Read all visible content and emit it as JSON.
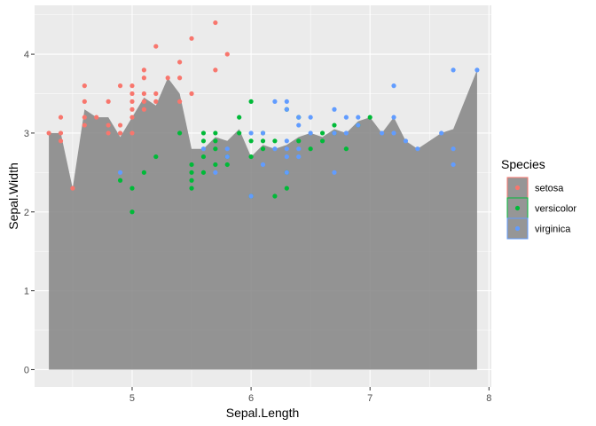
{
  "chart_data": {
    "type": "area",
    "xlabel": "Sepal.Length",
    "ylabel": "Sepal.Width",
    "xlim": [
      4.18,
      8.02
    ],
    "ylim": [
      -0.22,
      4.62
    ],
    "x_ticks": [
      5,
      6,
      7,
      8
    ],
    "y_ticks": [
      0,
      1,
      2,
      3,
      4
    ],
    "x_tick_labels": [
      "5",
      "6",
      "7",
      "8"
    ],
    "y_tick_labels": [
      "0",
      "1",
      "2",
      "3",
      "4"
    ],
    "grid": true,
    "legend": {
      "title": "Species",
      "position": "right",
      "entries": [
        {
          "label": "setosa",
          "color": "#F8766D"
        },
        {
          "label": "versicolor",
          "color": "#00BA38"
        },
        {
          "label": "virginica",
          "color": "#619CFF"
        }
      ]
    },
    "area": {
      "color": "#7f7f7f",
      "x": [
        4.3,
        4.4,
        4.5,
        4.6,
        4.7,
        4.8,
        4.9,
        5.0,
        5.1,
        5.2,
        5.3,
        5.4,
        5.5,
        5.6,
        5.7,
        5.8,
        5.9,
        6.0,
        6.1,
        6.2,
        6.3,
        6.4,
        6.5,
        6.6,
        6.7,
        6.8,
        6.9,
        7.0,
        7.1,
        7.2,
        7.3,
        7.4,
        7.6,
        7.7,
        7.9
      ],
      "y": [
        3.0,
        3.0,
        2.3,
        3.3,
        3.2,
        3.2,
        2.95,
        3.2,
        3.45,
        3.35,
        3.7,
        3.5,
        2.8,
        2.8,
        2.95,
        2.9,
        3.05,
        2.7,
        2.85,
        2.8,
        2.85,
        2.95,
        3.0,
        2.95,
        3.05,
        3.0,
        3.15,
        3.2,
        3.0,
        3.2,
        2.9,
        2.8,
        3.0,
        3.05,
        3.8
      ]
    },
    "series": [
      {
        "name": "setosa",
        "color": "#F8766D",
        "points": [
          [
            4.3,
            3.0
          ],
          [
            4.4,
            3.0
          ],
          [
            4.4,
            2.9
          ],
          [
            4.4,
            3.2
          ],
          [
            4.5,
            2.3
          ],
          [
            4.6,
            3.1
          ],
          [
            4.6,
            3.2
          ],
          [
            4.6,
            3.4
          ],
          [
            4.6,
            3.6
          ],
          [
            4.7,
            3.2
          ],
          [
            4.8,
            3.0
          ],
          [
            4.8,
            3.1
          ],
          [
            4.8,
            3.4
          ],
          [
            4.9,
            3.0
          ],
          [
            4.9,
            3.1
          ],
          [
            4.9,
            3.6
          ],
          [
            5.0,
            3.0
          ],
          [
            5.0,
            3.2
          ],
          [
            5.0,
            3.3
          ],
          [
            5.0,
            3.4
          ],
          [
            5.0,
            3.5
          ],
          [
            5.0,
            3.6
          ],
          [
            5.1,
            3.3
          ],
          [
            5.1,
            3.4
          ],
          [
            5.1,
            3.5
          ],
          [
            5.1,
            3.7
          ],
          [
            5.1,
            3.8
          ],
          [
            5.2,
            3.4
          ],
          [
            5.2,
            3.5
          ],
          [
            5.2,
            4.1
          ],
          [
            5.3,
            3.7
          ],
          [
            5.4,
            3.4
          ],
          [
            5.4,
            3.7
          ],
          [
            5.4,
            3.9
          ],
          [
            5.5,
            3.5
          ],
          [
            5.5,
            4.2
          ],
          [
            5.7,
            3.8
          ],
          [
            5.7,
            4.4
          ],
          [
            5.8,
            4.0
          ]
        ]
      },
      {
        "name": "versicolor",
        "color": "#00BA38",
        "points": [
          [
            4.9,
            2.4
          ],
          [
            5.0,
            2.0
          ],
          [
            5.0,
            2.3
          ],
          [
            5.1,
            2.5
          ],
          [
            5.2,
            2.7
          ],
          [
            5.4,
            3.0
          ],
          [
            5.5,
            2.3
          ],
          [
            5.5,
            2.4
          ],
          [
            5.5,
            2.5
          ],
          [
            5.5,
            2.6
          ],
          [
            5.6,
            2.5
          ],
          [
            5.6,
            2.7
          ],
          [
            5.6,
            2.9
          ],
          [
            5.6,
            3.0
          ],
          [
            5.7,
            2.6
          ],
          [
            5.7,
            2.8
          ],
          [
            5.7,
            2.9
          ],
          [
            5.7,
            3.0
          ],
          [
            5.8,
            2.6
          ],
          [
            5.8,
            2.7
          ],
          [
            5.9,
            3.0
          ],
          [
            5.9,
            3.2
          ],
          [
            6.0,
            2.2
          ],
          [
            6.0,
            2.7
          ],
          [
            6.0,
            2.9
          ],
          [
            6.0,
            3.4
          ],
          [
            6.1,
            2.8
          ],
          [
            6.1,
            2.9
          ],
          [
            6.1,
            3.0
          ],
          [
            6.2,
            2.2
          ],
          [
            6.2,
            2.9
          ],
          [
            6.3,
            2.3
          ],
          [
            6.3,
            2.5
          ],
          [
            6.3,
            3.3
          ],
          [
            6.4,
            2.9
          ],
          [
            6.4,
            3.2
          ],
          [
            6.5,
            2.8
          ],
          [
            6.6,
            2.9
          ],
          [
            6.6,
            3.0
          ],
          [
            6.7,
            3.0
          ],
          [
            6.7,
            3.1
          ],
          [
            6.8,
            2.8
          ],
          [
            6.9,
            3.1
          ],
          [
            7.0,
            3.2
          ]
        ]
      },
      {
        "name": "virginica",
        "color": "#619CFF",
        "points": [
          [
            4.9,
            2.5
          ],
          [
            5.6,
            2.8
          ],
          [
            5.7,
            2.5
          ],
          [
            5.8,
            2.7
          ],
          [
            5.8,
            2.8
          ],
          [
            6.0,
            2.2
          ],
          [
            6.0,
            3.0
          ],
          [
            6.1,
            2.6
          ],
          [
            6.1,
            3.0
          ],
          [
            6.2,
            2.8
          ],
          [
            6.2,
            3.4
          ],
          [
            6.3,
            2.5
          ],
          [
            6.3,
            2.7
          ],
          [
            6.3,
            2.8
          ],
          [
            6.3,
            2.9
          ],
          [
            6.3,
            3.3
          ],
          [
            6.3,
            3.4
          ],
          [
            6.4,
            2.7
          ],
          [
            6.4,
            2.8
          ],
          [
            6.4,
            3.1
          ],
          [
            6.4,
            3.2
          ],
          [
            6.5,
            3.0
          ],
          [
            6.5,
            3.2
          ],
          [
            6.7,
            2.5
          ],
          [
            6.7,
            3.0
          ],
          [
            6.7,
            3.3
          ],
          [
            6.8,
            3.0
          ],
          [
            6.8,
            3.2
          ],
          [
            6.9,
            3.1
          ],
          [
            6.9,
            3.2
          ],
          [
            7.1,
            3.0
          ],
          [
            7.2,
            3.0
          ],
          [
            7.2,
            3.2
          ],
          [
            7.2,
            3.6
          ],
          [
            7.3,
            2.9
          ],
          [
            7.4,
            2.8
          ],
          [
            7.6,
            3.0
          ],
          [
            7.7,
            2.6
          ],
          [
            7.7,
            2.8
          ],
          [
            7.7,
            3.8
          ],
          [
            7.9,
            3.8
          ]
        ]
      }
    ]
  }
}
